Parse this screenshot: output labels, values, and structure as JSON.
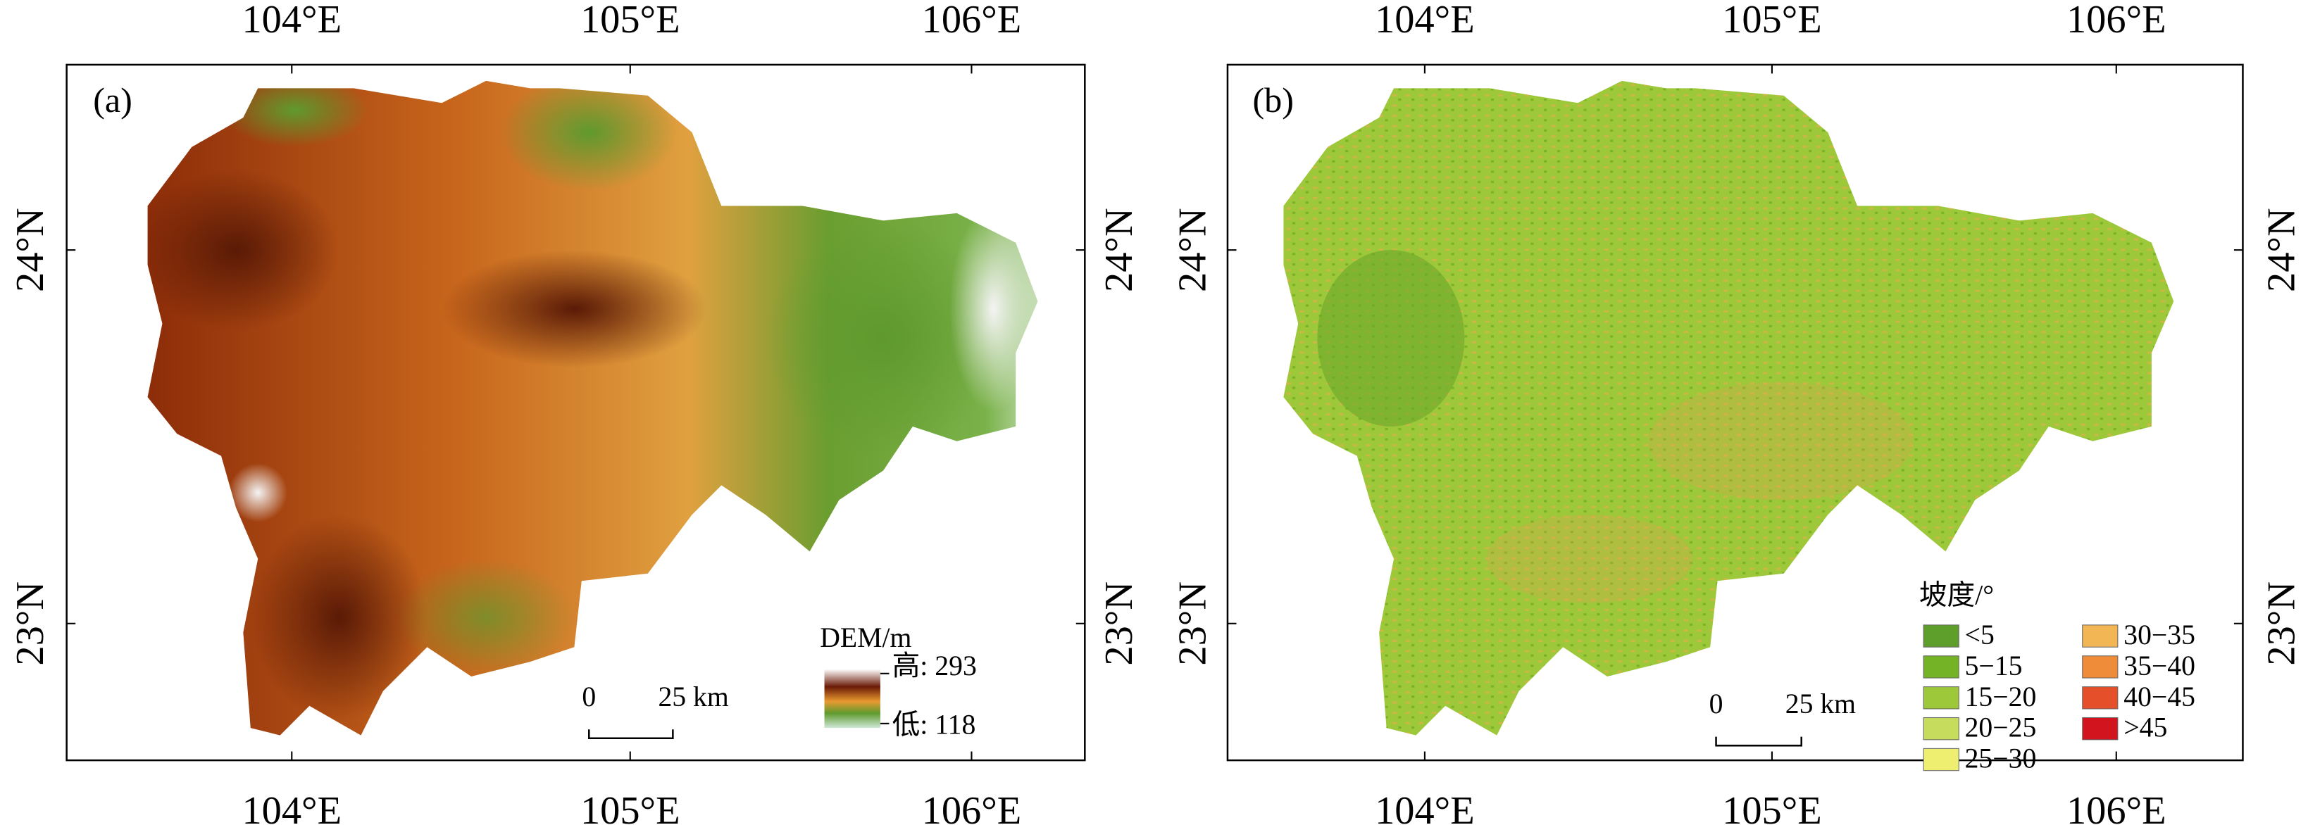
{
  "panels": [
    {
      "label": "(a)",
      "lon_labels": [
        "104°E",
        "105°E",
        "106°E"
      ],
      "lat_labels": [
        "24°N",
        "23°N"
      ],
      "scale_bar": {
        "zero": "0",
        "distance": "25 km"
      },
      "legend": {
        "title": "DEM/m",
        "high": "高: 293",
        "low": "低: 118"
      }
    },
    {
      "label": "(b)",
      "lon_labels": [
        "104°E",
        "105°E",
        "106°E"
      ],
      "lat_labels": [
        "24°N",
        "23°N"
      ],
      "scale_bar": {
        "zero": "0",
        "distance": "25 km"
      },
      "legend": {
        "title": "坡度/°",
        "items": [
          {
            "label": "<5",
            "color": "#5e9e2a"
          },
          {
            "label": "5−15",
            "color": "#74b226"
          },
          {
            "label": "15−20",
            "color": "#9cc83a"
          },
          {
            "label": "20−25",
            "color": "#c6dc5c"
          },
          {
            "label": "25−30",
            "color": "#eeee70"
          },
          {
            "label": "30−35",
            "color": "#f2b655"
          },
          {
            "label": "35−40",
            "color": "#ef8c3a"
          },
          {
            "label": "40−45",
            "color": "#e5502a"
          },
          {
            "label": ">45",
            "color": "#d2141e"
          }
        ]
      }
    }
  ]
}
